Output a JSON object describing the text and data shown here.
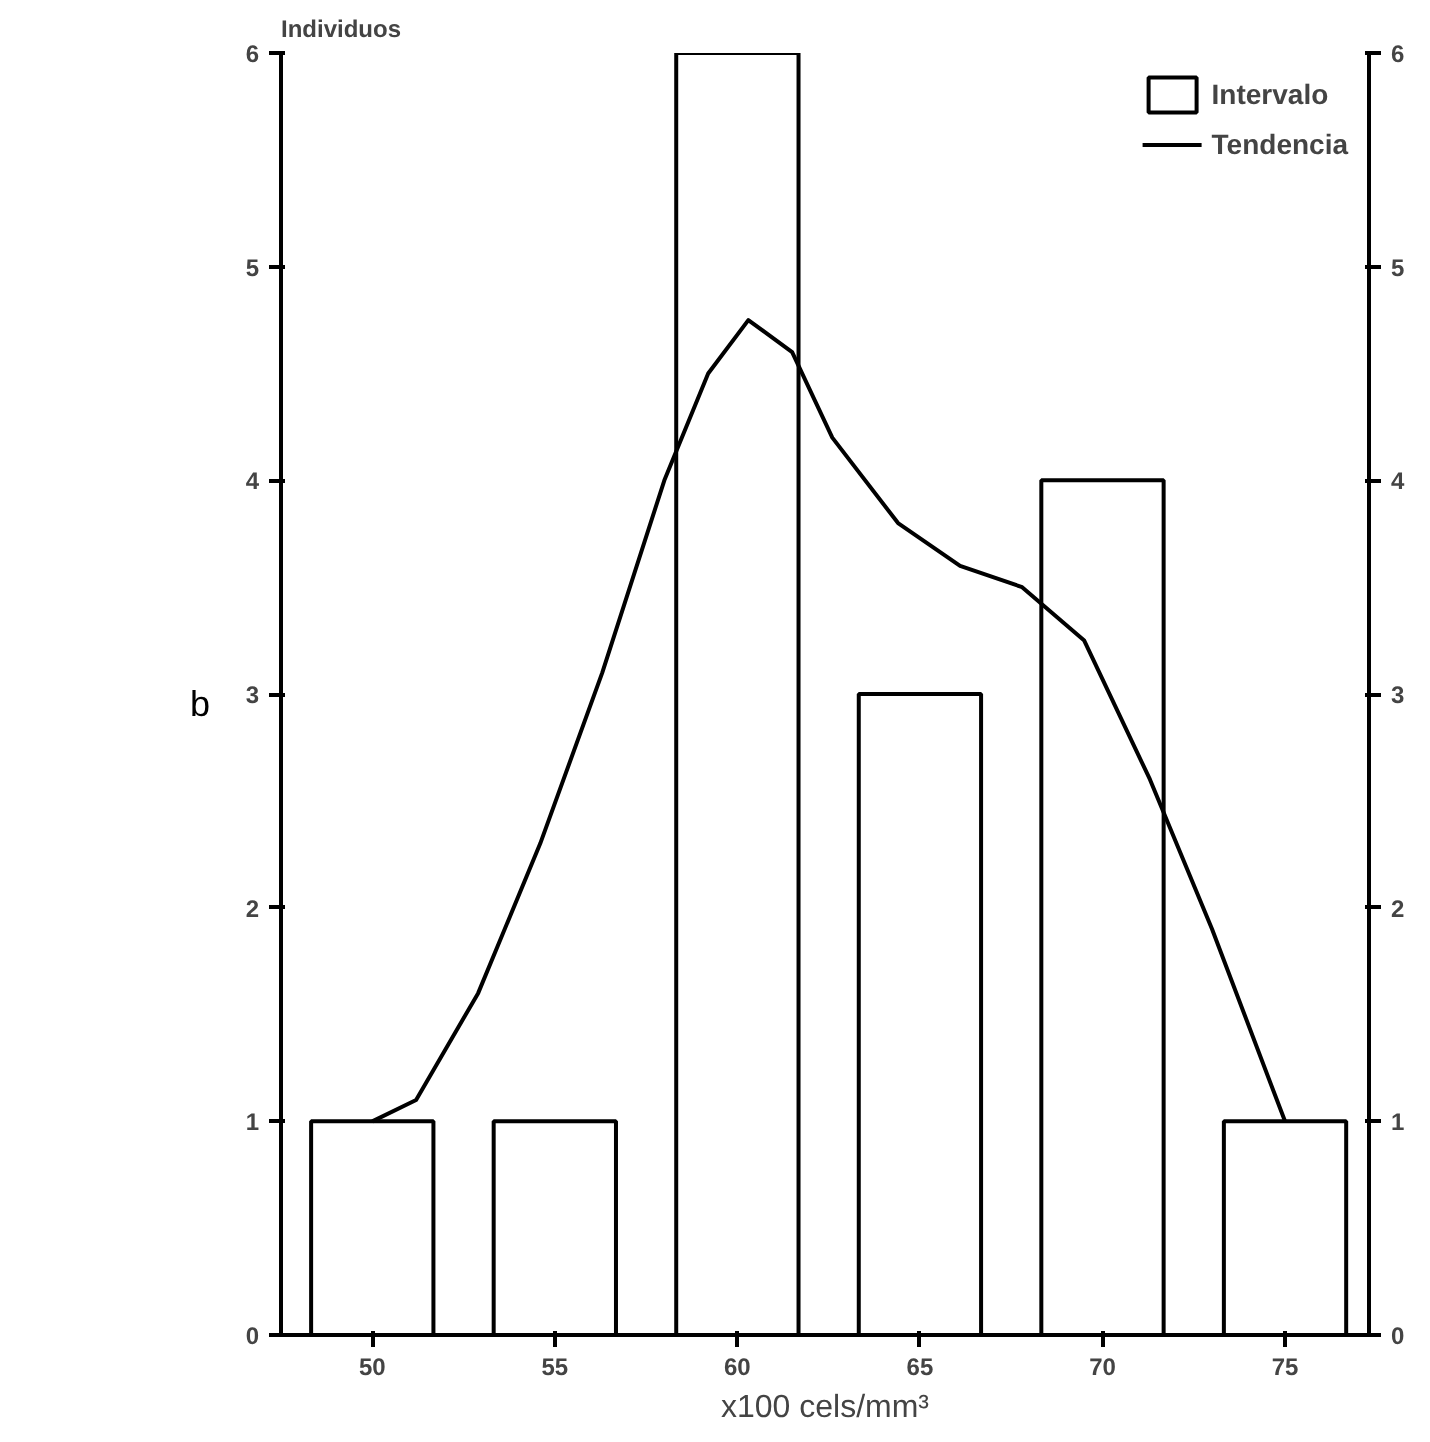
{
  "chart_data": {
    "type": "bar",
    "xlabel": "x100 cels/mm³",
    "ylabel": "Individuos",
    "annotations": [
      "b"
    ],
    "x": [
      50,
      55,
      60,
      65,
      70,
      75
    ],
    "series": [
      {
        "name": "Intervalo",
        "color": "#ffffff",
        "values": [
          1,
          1,
          6,
          3,
          4,
          1
        ]
      },
      {
        "name": "Tendencia",
        "type": "line",
        "color": "#000000",
        "x": [
          50,
          51.2,
          52.9,
          54.6,
          56.3,
          58.0,
          59.2,
          60.3,
          61.5,
          62.6,
          64.4,
          66.1,
          67.8,
          69.5,
          71.3,
          73.0,
          75
        ],
        "values": [
          1,
          1.1,
          1.6,
          2.3,
          3.1,
          4.0,
          4.5,
          4.75,
          4.6,
          4.2,
          3.8,
          3.6,
          3.5,
          3.25,
          2.6,
          1.9,
          1.0
        ]
      }
    ],
    "xlim": [
      47.5,
      77.3
    ],
    "xticks": [
      50,
      55,
      60,
      65,
      70,
      75
    ],
    "ylim": [
      0,
      6
    ],
    "yticks": [
      0,
      1,
      2,
      3,
      4,
      5,
      6
    ],
    "y2lim": [
      0,
      6
    ],
    "y2ticks": [
      0,
      1,
      2,
      3,
      4,
      5,
      6
    ],
    "grid": false,
    "legend": "top right"
  }
}
